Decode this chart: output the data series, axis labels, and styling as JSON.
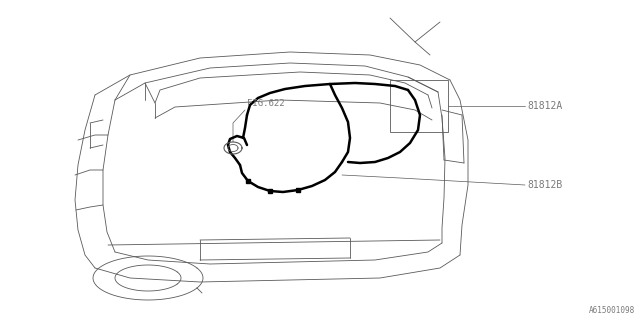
{
  "bg_color": "#ffffff",
  "line_color": "#5a5a5a",
  "bold_line_color": "#000000",
  "label_color": "#7a7a7a",
  "fig_width": 6.4,
  "fig_height": 3.2,
  "dpi": 100,
  "watermark": "A615001098",
  "label_81812A": "81812A",
  "label_81812B": "81812B",
  "label_fig622": "FIG.622",
  "lw_body": 0.6,
  "lw_wire": 1.8,
  "lw_leader": 0.5
}
